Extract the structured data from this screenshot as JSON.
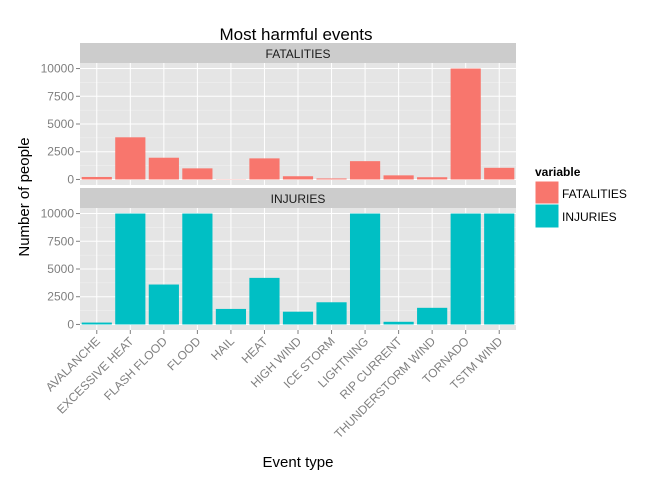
{
  "chart_data": {
    "type": "bar",
    "title": "Most harmful events",
    "xlabel": "Event type",
    "ylabel": "Number of people",
    "categories": [
      "AVALANCHE",
      "EXCESSIVE HEAT",
      "FLASH FLOOD",
      "FLOOD",
      "HAIL",
      "HEAT",
      "HIGH WIND",
      "ICE STORM",
      "LIGHTNING",
      "RIP CURRENT",
      "THUNDERSTORM WIND",
      "TORNADO",
      "TSTM WIND"
    ],
    "ylim": [
      0,
      10000
    ],
    "yticks": [
      0,
      2500,
      5000,
      7500,
      10000
    ],
    "ytick_labels": [
      "0",
      "2500",
      "5000",
      "7500",
      "10000"
    ],
    "grid": true,
    "legend": {
      "title": "variable",
      "position": "right"
    },
    "series": [
      {
        "name": "FATALITIES",
        "color": "#F8766D",
        "values": [
          224,
          3800,
          1960,
          1000,
          20,
          1900,
          290,
          90,
          1650,
          370,
          200,
          10000,
          1050
        ]
      },
      {
        "name": "INJURIES",
        "color": "#00BFC4",
        "values": [
          170,
          10000,
          3600,
          10000,
          1400,
          4200,
          1150,
          2000,
          10000,
          240,
          1500,
          10000,
          10000
        ]
      }
    ]
  }
}
